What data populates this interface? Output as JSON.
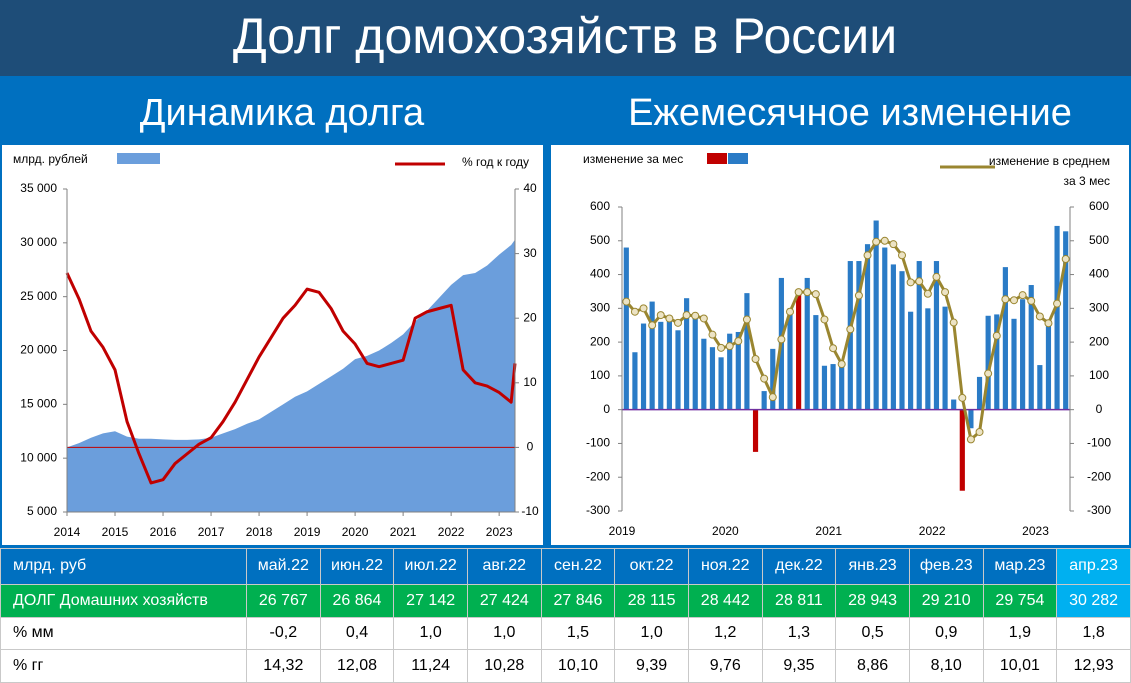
{
  "header": {
    "title": "Долг домохозяйств в России",
    "subtitles": [
      "Динамика долга",
      "Ежемесячное изменение"
    ]
  },
  "chart_data": [
    {
      "type": "area",
      "x": [
        2014,
        2014.25,
        2014.5,
        2014.75,
        2015,
        2015.25,
        2015.5,
        2015.75,
        2016,
        2016.25,
        2016.5,
        2016.75,
        2017,
        2017.25,
        2017.5,
        2017.75,
        2018,
        2018.25,
        2018.5,
        2018.75,
        2019,
        2019.25,
        2019.5,
        2019.75,
        2020,
        2020.25,
        2020.5,
        2020.75,
        2021,
        2021.25,
        2021.5,
        2021.75,
        2022,
        2022.25,
        2022.5,
        2022.75,
        2023,
        2023.25,
        2023.33
      ],
      "xlim": [
        2014,
        2023.33
      ],
      "xticks": [
        2014,
        2015,
        2016,
        2017,
        2018,
        2019,
        2020,
        2021,
        2022,
        2023
      ],
      "ylim": [
        5000,
        35000
      ],
      "yticks": [
        {
          "value": 5000,
          "label": "5 000"
        },
        {
          "value": 10000,
          "label": "10 000"
        },
        {
          "value": 15000,
          "label": "15 000"
        },
        {
          "value": 20000,
          "label": "20 000"
        },
        {
          "value": 25000,
          "label": "25 000"
        },
        {
          "value": 30000,
          "label": "30 000"
        },
        {
          "value": 35000,
          "label": "35 000"
        }
      ],
      "y2lim": [
        -10,
        40
      ],
      "y2ticks": [
        -10,
        0,
        10,
        20,
        30,
        40
      ],
      "zero_line_color": "#c00000",
      "series": [
        {
          "name": "млрд. рублей",
          "color": "#6b9edc",
          "values": [
            11000,
            11400,
            11900,
            12300,
            12500,
            12000,
            11800,
            11800,
            11750,
            11700,
            11700,
            11750,
            11900,
            12300,
            12700,
            13200,
            13600,
            14300,
            15000,
            15700,
            16200,
            16900,
            17600,
            18300,
            19200,
            19500,
            20000,
            20700,
            21500,
            22700,
            23700,
            24900,
            26100,
            27000,
            27200,
            27900,
            28900,
            29800,
            30300
          ]
        },
        {
          "name": "% год к году",
          "color": "#c00000",
          "axis": "y2",
          "values": [
            27,
            23,
            18,
            15.5,
            12,
            4,
            -1,
            -5.5,
            -5,
            -2.5,
            -1,
            0.5,
            1.5,
            4,
            7,
            10.5,
            14,
            17,
            20,
            22,
            24.5,
            24,
            21.5,
            18,
            16,
            13,
            12.5,
            13,
            13.5,
            20,
            21,
            21.5,
            22,
            12,
            10,
            9.5,
            8.5,
            7,
            13
          ]
        }
      ]
    },
    {
      "type": "bar",
      "categories": [
        "2019",
        null,
        null,
        null,
        null,
        null,
        null,
        null,
        null,
        null,
        null,
        null,
        "2020",
        null,
        null,
        null,
        null,
        null,
        null,
        null,
        null,
        null,
        null,
        null,
        "2021",
        null,
        null,
        null,
        null,
        null,
        null,
        null,
        null,
        null,
        null,
        null,
        "2022",
        null,
        null,
        null,
        null,
        null,
        null,
        null,
        null,
        null,
        null,
        null,
        "2023",
        null,
        null,
        null
      ],
      "ylim": [
        -300,
        600
      ],
      "yticks": [
        -300,
        -200,
        -100,
        0,
        100,
        200,
        300,
        400,
        500,
        600
      ],
      "y2lim": [
        -300,
        600
      ],
      "y2ticks": [
        -300,
        -200,
        -100,
        0,
        100,
        200,
        300,
        400,
        500,
        600
      ],
      "zero_line_color": "#7030a0",
      "series": [
        {
          "name": "изменение за мес",
          "color": "#2a7bc6",
          "colors": [
            "#2a7bc6",
            "#2a7bc6",
            "#2a7bc6",
            "#2a7bc6",
            "#2a7bc6",
            "#2a7bc6",
            "#2a7bc6",
            "#2a7bc6",
            "#2a7bc6",
            "#2a7bc6",
            "#2a7bc6",
            "#2a7bc6",
            "#2a7bc6",
            "#2a7bc6",
            "#2a7bc6",
            "#c00000",
            "#2a7bc6",
            "#2a7bc6",
            "#2a7bc6",
            "#2a7bc6",
            "#c00000",
            "#2a7bc6",
            "#2a7bc6",
            "#2a7bc6",
            "#2a7bc6",
            "#2a7bc6",
            "#2a7bc6",
            "#2a7bc6",
            "#2a7bc6",
            "#2a7bc6",
            "#2a7bc6",
            "#2a7bc6",
            "#2a7bc6",
            "#2a7bc6",
            "#2a7bc6",
            "#2a7bc6",
            "#2a7bc6",
            "#2a7bc6",
            "#2a7bc6",
            "#c00000",
            "#2a7bc6",
            "#2a7bc6",
            "#2a7bc6",
            "#2a7bc6",
            "#2a7bc6",
            "#2a7bc6",
            "#2a7bc6",
            "#2a7bc6",
            "#2a7bc6",
            "#2a7bc6",
            "#2a7bc6",
            "#2a7bc6"
          ],
          "values": [
            480,
            170,
            255,
            320,
            260,
            275,
            235,
            330,
            270,
            210,
            185,
            155,
            225,
            230,
            345,
            -125,
            55,
            180,
            390,
            300,
            355,
            390,
            280,
            130,
            135,
            140,
            440,
            440,
            490,
            560,
            480,
            430,
            410,
            290,
            440,
            300,
            440,
            305,
            30,
            -240,
            -55,
            97,
            278,
            282,
            422,
            269,
            327,
            369,
            132,
            267,
            544,
            528
          ]
        },
        {
          "name": "изменение в среднем за 3 мес",
          "color": "#9a8630",
          "axis": "y2",
          "markers": true,
          "marker_fill": "#ece3c4",
          "values": [
            320,
            290,
            300,
            250,
            280,
            270,
            257,
            280,
            278,
            270,
            222,
            183,
            188,
            203,
            267,
            150,
            92,
            37,
            208,
            290,
            348,
            348,
            342,
            267,
            182,
            135,
            238,
            338,
            457,
            497,
            500,
            490,
            457,
            377,
            380,
            343,
            393,
            348,
            258,
            35,
            -88,
            -66,
            107,
            219,
            327,
            324,
            339,
            322,
            276,
            256,
            314,
            446
          ]
        }
      ]
    }
  ],
  "table": {
    "header": [
      "млрд. руб",
      "май.22",
      "июн.22",
      "июл.22",
      "авг.22",
      "сен.22",
      "окт.22",
      "ноя.22",
      "дек.22",
      "янв.23",
      "фев.23",
      "мар.23",
      "апр.23"
    ],
    "rows": [
      [
        "ДОЛГ Домашних хозяйств",
        "26 767",
        "26 864",
        "27 142",
        "27 424",
        "27 846",
        "28 115",
        "28 442",
        "28 811",
        "28 943",
        "29 210",
        "29 754",
        "30 282"
      ],
      [
        "% мм",
        "-0,2",
        "0,4",
        "1,0",
        "1,0",
        "1,5",
        "1,0",
        "1,2",
        "1,3",
        "0,5",
        "0,9",
        "1,9",
        "1,8"
      ],
      [
        "% гг",
        "14,32",
        "12,08",
        "11,24",
        "10,28",
        "10,10",
        "9,39",
        "9,76",
        "9,35",
        "8,86",
        "8,10",
        "10,01",
        "12,93"
      ]
    ]
  }
}
